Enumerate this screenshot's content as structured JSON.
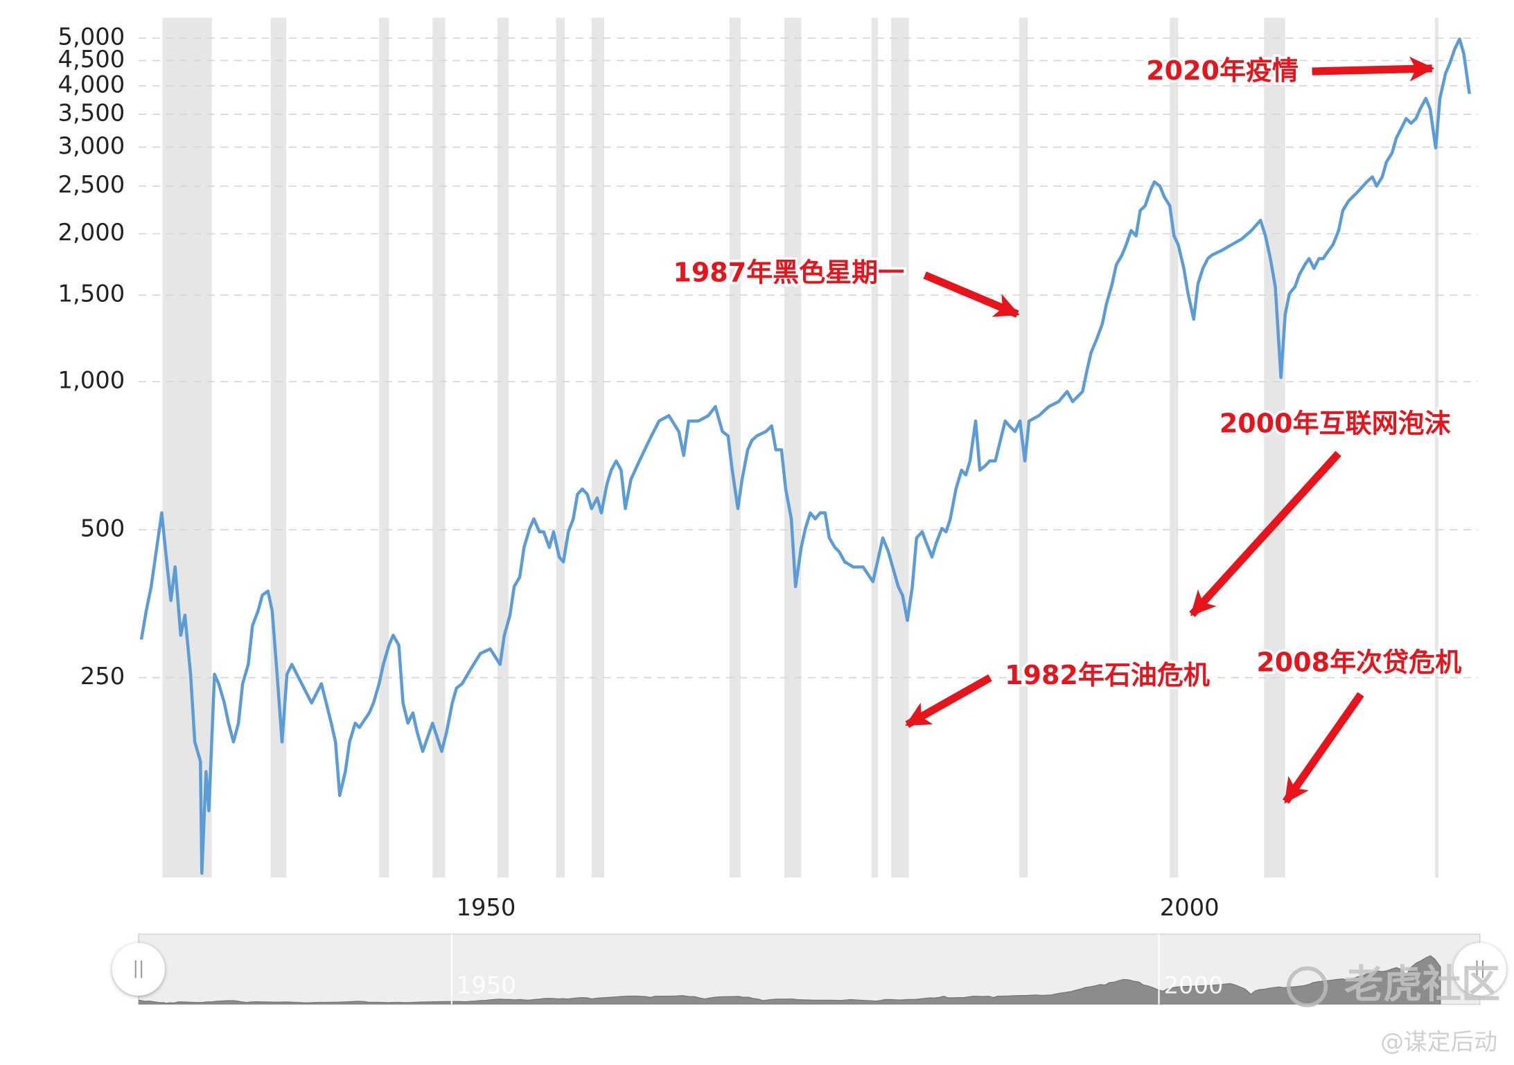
{
  "chart_data": {
    "type": "line",
    "log_scale": true,
    "grid": true,
    "color": "#5b9bd6",
    "recession_color": "#e6e6e6",
    "xlim": [
      1925.3,
      2020.5
    ],
    "xticks": [
      1950,
      2000
    ],
    "ylim": [
      98,
      5500
    ],
    "yticks": [
      250,
      500,
      {
        "value": 1000,
        "label": "1,000"
      },
      {
        "value": 1500,
        "label": "1,500"
      },
      {
        "value": 2000,
        "label": "2,000"
      },
      {
        "value": 2500,
        "label": "2,500"
      },
      {
        "value": 3000,
        "label": "3,000"
      },
      {
        "value": 3500,
        "label": "3,500"
      },
      {
        "value": 4000,
        "label": "4,000"
      },
      {
        "value": 4500,
        "label": "4,500"
      },
      {
        "value": 5000,
        "label": "5,000"
      }
    ],
    "recessions": [
      [
        1927.0,
        1930.5
      ],
      [
        1934.7,
        1935.8
      ],
      [
        1942.4,
        1943.1
      ],
      [
        1946.2,
        1947.1
      ],
      [
        1950.8,
        1951.6
      ],
      [
        1954.98,
        1955.6
      ],
      [
        1957.5,
        1958.4
      ],
      [
        1967.3,
        1968.1
      ],
      [
        1971.2,
        1972.4
      ],
      [
        1977.4,
        1977.85
      ],
      [
        1978.8,
        1980.05
      ],
      [
        1987.9,
        1988.5
      ],
      [
        1998.6,
        1999.2
      ],
      [
        2005.3,
        2006.8
      ],
      [
        2017.45,
        2017.7
      ]
    ],
    "x": [
      1925.5,
      1925.85,
      1926.2,
      1926.5,
      1926.95,
      1927.2,
      1927.6,
      1927.9,
      1928.3,
      1928.6,
      1929.0,
      1929.3,
      1929.7,
      1929.8,
      1930.1,
      1930.3,
      1930.7,
      1931.0,
      1931.4,
      1931.7,
      1932.05,
      1932.4,
      1932.7,
      1933.1,
      1933.4,
      1933.8,
      1934.1,
      1934.5,
      1934.8,
      1935.15,
      1935.5,
      1935.85,
      1936.2,
      1936.9,
      1937.6,
      1938.3,
      1939.0,
      1939.3,
      1939.6,
      1940.0,
      1940.3,
      1940.7,
      1941.0,
      1941.7,
      1942.0,
      1942.4,
      1942.7,
      1943.1,
      1943.4,
      1943.8,
      1944.1,
      1944.45,
      1944.8,
      1945.1,
      1945.5,
      1946.2,
      1946.85,
      1947.2,
      1947.6,
      1947.9,
      1948.3,
      1948.9,
      1949.6,
      1950.3,
      1951.0,
      1951.3,
      1951.7,
      1952.0,
      1952.4,
      1952.7,
      1953.1,
      1953.4,
      1953.8,
      1954.1,
      1954.5,
      1954.8,
      1955.2,
      1955.5,
      1955.85,
      1956.2,
      1956.5,
      1956.85,
      1957.2,
      1957.5,
      1957.9,
      1958.2,
      1958.6,
      1958.9,
      1959.25,
      1959.6,
      1959.9,
      1960.3,
      1960.9,
      1961.6,
      1962.3,
      1963.0,
      1963.7,
      1964.05,
      1964.4,
      1965.1,
      1965.8,
      1966.3,
      1966.8,
      1967.2,
      1967.5,
      1967.9,
      1968.2,
      1968.6,
      1968.9,
      1969.25,
      1969.9,
      1970.3,
      1970.6,
      1971.0,
      1971.3,
      1971.7,
      1972.0,
      1972.4,
      1972.7,
      1973.05,
      1973.4,
      1973.75,
      1974.1,
      1974.4,
      1974.8,
      1975.1,
      1975.5,
      1976.1,
      1976.8,
      1977.5,
      1977.9,
      1978.2,
      1978.6,
      1978.9,
      1979.3,
      1979.6,
      1979.95,
      1980.3,
      1980.6,
      1981.0,
      1981.3,
      1981.7,
      1982.0,
      1982.4,
      1982.7,
      1983.0,
      1983.4,
      1983.8,
      1984.1,
      1984.4,
      1984.8,
      1985.1,
      1985.5,
      1985.8,
      1986.2,
      1986.9,
      1987.2,
      1987.6,
      1987.95,
      1988.3,
      1988.6,
      1989.3,
      1990.0,
      1990.7,
      1991.3,
      1991.7,
      1992.4,
      1992.7,
      1993.0,
      1993.4,
      1993.8,
      1994.1,
      1994.5,
      1994.8,
      1995.2,
      1995.5,
      1995.85,
      1996.2,
      1996.5,
      1996.85,
      1997.2,
      1997.5,
      1997.9,
      1998.2,
      1998.6,
      1998.9,
      1999.2,
      1999.6,
      1999.9,
      2000.3,
      2000.6,
      2000.95,
      2001.3,
      2001.6,
      2002.3,
      2003.0,
      2003.7,
      2004.4,
      2005.05,
      2005.4,
      2005.75,
      2006.1,
      2006.5,
      2006.8,
      2007.1,
      2007.5,
      2007.8,
      2008.2,
      2008.5,
      2008.85,
      2009.2,
      2009.5,
      2009.9,
      2010.2,
      2010.6,
      2010.9,
      2011.3,
      2012.0,
      2012.6,
      2013.0,
      2013.3,
      2013.7,
      2014.0,
      2014.4,
      2014.7,
      2015.05,
      2015.4,
      2015.75,
      2016.1,
      2016.4,
      2016.8,
      2017.1,
      2017.5,
      2017.8,
      2018.2,
      2018.5,
      2018.85,
      2019.2,
      2019.5,
      2019.9
    ],
    "values": [
      299,
      342,
      383,
      440,
      541,
      460,
      359,
      420,
      305,
      335,
      254,
      185,
      169,
      100,
      161,
      134,
      254,
      243,
      222,
      202,
      185,
      202,
      243,
      266,
      319,
      342,
      368,
      375,
      342,
      254,
      185,
      254,
      266,
      243,
      222,
      243,
      202,
      185,
      144,
      161,
      185,
      202,
      198,
      212,
      222,
      243,
      266,
      291,
      305,
      291,
      222,
      202,
      212,
      194,
      177,
      202,
      177,
      194,
      222,
      238,
      243,
      260,
      280,
      286,
      266,
      305,
      335,
      383,
      401,
      460,
      503,
      526,
      495,
      495,
      460,
      495,
      440,
      430,
      495,
      526,
      590,
      605,
      590,
      552,
      580,
      541,
      620,
      661,
      690,
      661,
      552,
      633,
      690,
      760,
      832,
      853,
      792,
      708,
      832,
      832,
      853,
      890,
      792,
      776,
      661,
      552,
      633,
      727,
      760,
      776,
      792,
      813,
      727,
      727,
      605,
      526,
      383,
      460,
      503,
      541,
      526,
      541,
      541,
      481,
      460,
      451,
      430,
      420,
      420,
      392,
      440,
      481,
      451,
      420,
      383,
      368,
      327,
      383,
      481,
      495,
      470,
      440,
      470,
      503,
      495,
      526,
      605,
      661,
      646,
      690,
      832,
      661,
      675,
      690,
      690,
      832,
      813,
      792,
      832,
      690,
      832,
      853,
      890,
      911,
      955,
      911,
      955,
      1050,
      1145,
      1220,
      1310,
      1440,
      1580,
      1730,
      1810,
      1900,
      2030,
      1980,
      2230,
      2280,
      2440,
      2550,
      2500,
      2380,
      2280,
      1980,
      1900,
      1700,
      1510,
      1340,
      1580,
      1700,
      1780,
      1810,
      1850,
      1900,
      1950,
      2030,
      2130,
      1980,
      1780,
      1560,
      1020,
      1370,
      1510,
      1560,
      1650,
      1730,
      1780,
      1700,
      1780,
      1780,
      1850,
      1900,
      2030,
      2230,
      2330,
      2440,
      2550,
      2610,
      2500,
      2610,
      2800,
      2920,
      3130,
      3275,
      3430,
      3355,
      3430,
      3590,
      3770,
      3590,
      2990,
      3770,
      4240,
      4440,
      4750,
      4980,
      4640,
      3850
    ],
    "annotations": [
      "2020年疫情",
      "1987年黑色星期一",
      "2000年互联网泡沫",
      "1982年石油危机",
      "2008年次贷危机"
    ],
    "annotation_color": "#e8141b"
  },
  "watermark": {
    "logo": "老虎社区",
    "author": "@谋定后动"
  }
}
